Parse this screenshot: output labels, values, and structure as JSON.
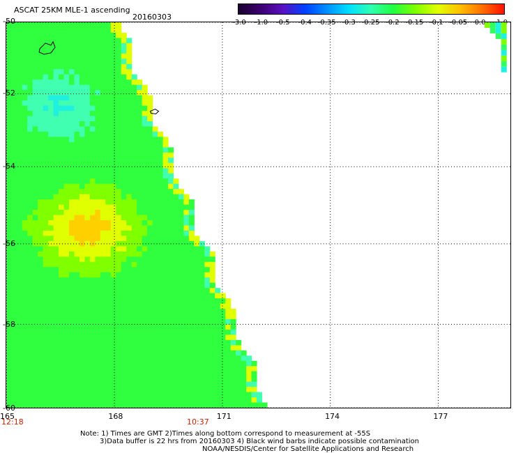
{
  "header": {
    "title": "ASCAT 25KM MLE-1 ascending",
    "date": "20160303"
  },
  "colorbar": {
    "tick_labels": [
      "-3.0",
      "-1.0",
      "-0.5",
      "-0.4",
      "-0.35",
      "-0.3",
      "-0.25",
      "-0.2",
      "-0.15",
      "-0.1",
      "-0.05",
      "0.0",
      "1.0"
    ],
    "colors": [
      "#1a0030",
      "#3c0070",
      "#5a10c0",
      "#0040ff",
      "#0090ff",
      "#00e0ff",
      "#30ffb0",
      "#20ff40",
      "#80ff00",
      "#e0ff00",
      "#ffc000",
      "#ff7000",
      "#ff1000"
    ]
  },
  "axes": {
    "x_ticks": [
      "165",
      "168",
      "171",
      "174",
      "177"
    ],
    "y_ticks": [
      "-50",
      "-52",
      "-54",
      "-56",
      "-58",
      "-60"
    ],
    "times": [
      "12:18",
      "10:37"
    ]
  },
  "notes": {
    "line1": "Note: 1) Times are GMT 2)Times along bottom correspond to measurement at -55S",
    "line2": "3)Data buffer is 22 hrs from 20160303 4) Black wind barbs indicate possible contamination",
    "line3": "NOAA/NESDIS/Center for Satellite Applications and Research"
  },
  "map": {
    "lon_range": [
      165,
      179
    ],
    "lat_range": [
      -60,
      -50
    ],
    "gridlines": "dotted",
    "swath_colors": [
      "#20f0e0",
      "#40ffb0",
      "#30ff40",
      "#80ff00",
      "#e0ff00",
      "#ffd000",
      "#ff9000"
    ]
  }
}
